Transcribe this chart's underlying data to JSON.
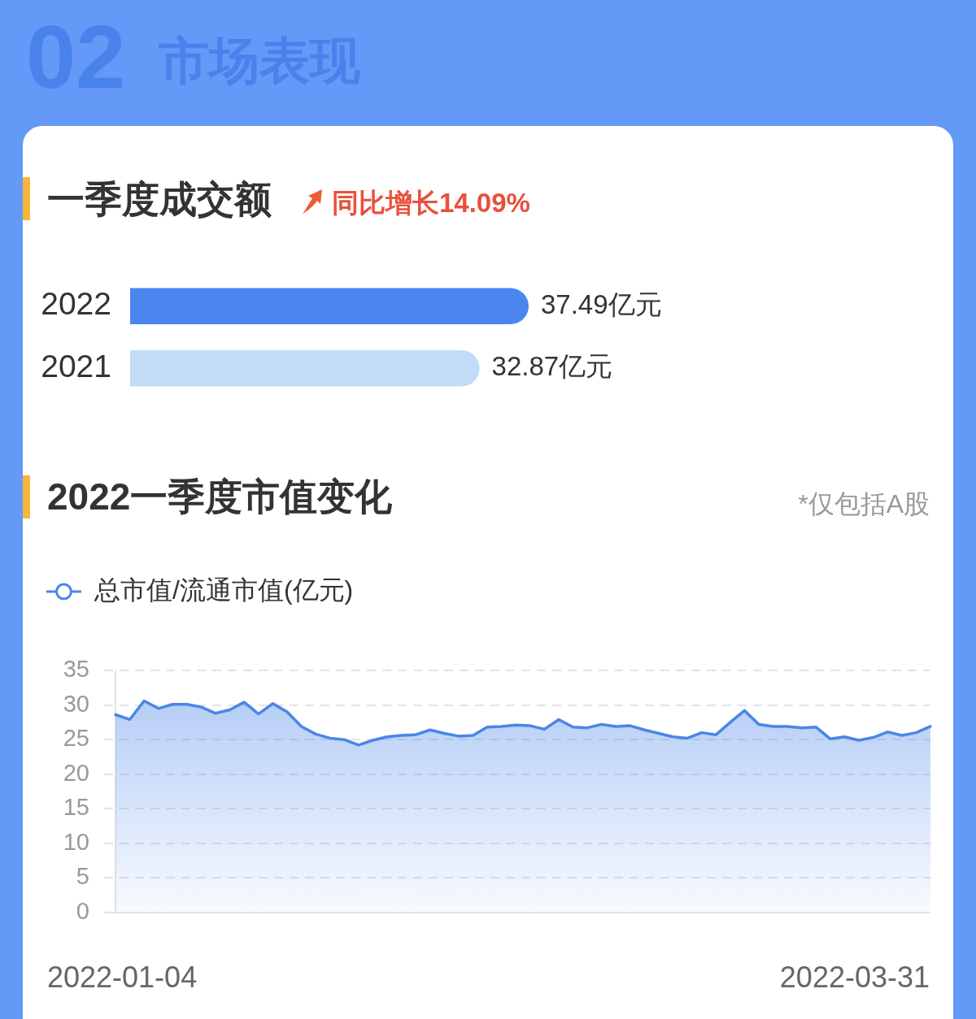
{
  "chart_data": [
    {
      "type": "bar",
      "orientation": "horizontal",
      "title": "一季度成交额",
      "annotations": [
        "02",
        "市场表现",
        "同比增长14.09%"
      ],
      "categories": [
        "2022",
        "2021"
      ],
      "values": [
        37.49,
        32.87
      ],
      "colors": [
        "#4a86ee",
        "#c2dbf7"
      ],
      "value_labels": [
        "37.49亿元",
        "32.87亿元"
      ],
      "tick_labels": "y"
    },
    {
      "type": "area",
      "title": "2022一季度市值变化",
      "annotations": [
        "*仅包括A股",
        "2022-01-04",
        "2022-03-31"
      ],
      "categories": [
        null,
        null,
        null,
        null,
        null,
        null,
        null,
        null,
        null,
        null,
        null,
        null,
        null,
        null,
        null,
        null,
        null,
        null,
        null,
        null,
        null,
        null,
        null,
        null,
        null,
        null,
        null,
        null,
        null,
        null,
        null,
        null,
        null,
        null,
        null,
        null,
        null,
        null,
        null,
        null,
        null,
        null,
        null,
        null,
        null,
        null,
        null,
        null,
        null,
        null,
        null,
        null,
        null,
        null,
        null,
        null,
        null,
        null
      ],
      "series": [
        {
          "name": "总市值/流通市值(亿元)",
          "color": "#4a86e8",
          "values": [
            28.6,
            27.9,
            30.6,
            29.5,
            30.1,
            30.1,
            29.7,
            28.8,
            29.3,
            30.4,
            28.7,
            30.2,
            29.0,
            26.9,
            25.8,
            25.2,
            25.0,
            24.2,
            24.9,
            25.4,
            25.6,
            25.7,
            26.4,
            25.9,
            25.5,
            25.6,
            26.8,
            26.9,
            27.1,
            27.0,
            26.5,
            27.9,
            26.8,
            26.7,
            27.2,
            26.9,
            27.0,
            26.4,
            25.9,
            25.4,
            25.2,
            26.0,
            25.7,
            27.5,
            29.2,
            27.2,
            26.9,
            26.9,
            26.7,
            26.8,
            25.1,
            25.4,
            24.9,
            25.3,
            26.1,
            25.6,
            26.0,
            26.9
          ]
        }
      ],
      "ylim": [
        0,
        35
      ],
      "yticks": [
        0,
        5,
        10,
        15,
        20,
        25,
        30,
        35
      ],
      "grid": "y",
      "legend": "top left",
      "marker": "none",
      "tick_labels": "y"
    }
  ]
}
